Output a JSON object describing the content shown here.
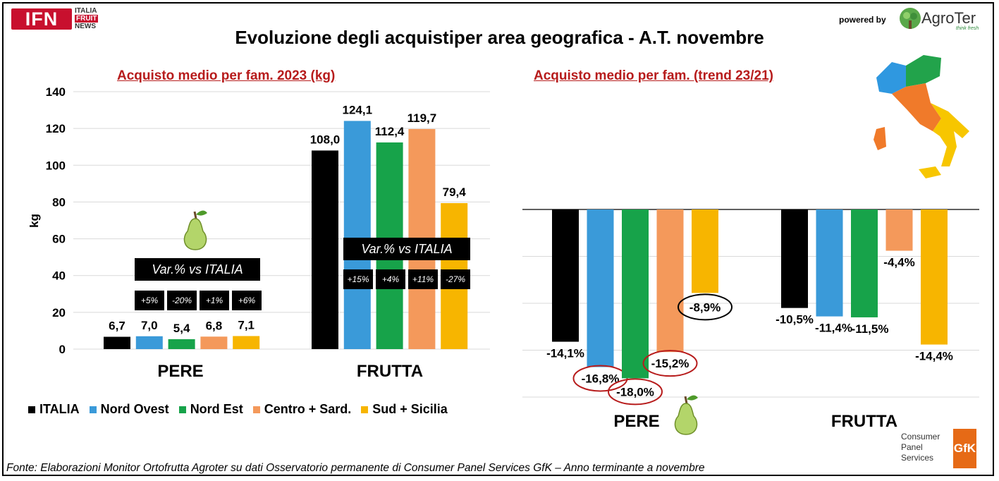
{
  "header": {
    "logo_main": "IFN",
    "logo_sub": [
      "ITALIA",
      "FRUIT",
      "NEWS"
    ],
    "title": "Evoluzione degli acquistiper area geografica - A.T. novembre",
    "powered_by": "powered by",
    "brand": "AgroTer",
    "brand_tag": "think fresh"
  },
  "colors": {
    "ITALIA": "#000000",
    "Nord Ovest": "#3a9ad9",
    "Nord Est": "#17a34a",
    "Centro + Sard.": "#f4995b",
    "Sud + Sicilia": "#f7b500",
    "subtitle_red": "#b71c1c"
  },
  "variation_box": {
    "label": "Var.% vs ITALIA",
    "pere": [
      "+5%",
      "-20%",
      "+1%",
      "+6%"
    ],
    "frutta": [
      "+15%",
      "+4%",
      "+11%",
      "-27%"
    ]
  },
  "footer": {
    "source": "Fonte: Elaborazioni Monitor Ortofrutta Agroter su dati Osservatorio permanente di Consumer Panel Services GfK – Anno terminante a novembre",
    "cps": [
      "Consumer",
      "Panel",
      "Services"
    ],
    "gfk": "GfK"
  },
  "chart_data": [
    {
      "type": "bar",
      "title": "Acquisto medio per fam. 2023 (kg)",
      "ylabel": "kg",
      "ylim": [
        0,
        140
      ],
      "yticks": [
        0,
        20,
        40,
        60,
        80,
        100,
        120,
        140
      ],
      "categories": [
        "PERE",
        "FRUTTA"
      ],
      "series": [
        {
          "name": "ITALIA",
          "values": [
            6.7,
            108.0
          ],
          "labels": [
            "6,7",
            "108,0"
          ]
        },
        {
          "name": "Nord Ovest",
          "values": [
            7.0,
            124.1
          ],
          "labels": [
            "7,0",
            "124,1"
          ]
        },
        {
          "name": "Nord Est",
          "values": [
            5.4,
            112.4
          ],
          "labels": [
            "5,4",
            "112,4"
          ]
        },
        {
          "name": "Centro + Sard.",
          "values": [
            6.8,
            119.7
          ],
          "labels": [
            "6,8",
            "119,7"
          ]
        },
        {
          "name": "Sud + Sicilia",
          "values": [
            7.1,
            79.4
          ],
          "labels": [
            "7,1",
            "79,4"
          ]
        }
      ],
      "legend": "bottom"
    },
    {
      "type": "bar",
      "title": "Acquisto medio per fam. (trend 23/21)",
      "ylim": [
        -20,
        0
      ],
      "categories": [
        "PERE",
        "FRUTTA"
      ],
      "series": [
        {
          "name": "ITALIA",
          "values": [
            -14.1,
            -10.5
          ],
          "labels": [
            "-14,1%",
            "-10,5%"
          ]
        },
        {
          "name": "Nord Ovest",
          "values": [
            -16.8,
            -11.4
          ],
          "labels": [
            "-16,8%",
            "-11,4%"
          ]
        },
        {
          "name": "Nord Est",
          "values": [
            -18.0,
            -11.5
          ],
          "labels": [
            "-18,0%",
            "-11,5%"
          ]
        },
        {
          "name": "Centro + Sard.",
          "values": [
            -15.2,
            -4.4
          ],
          "labels": [
            "-15,2%",
            "-4,4%"
          ]
        },
        {
          "name": "Sud + Sicilia",
          "values": [
            -8.9,
            -14.4
          ],
          "labels": [
            "-8,9%",
            "-14,4%"
          ]
        }
      ]
    }
  ]
}
